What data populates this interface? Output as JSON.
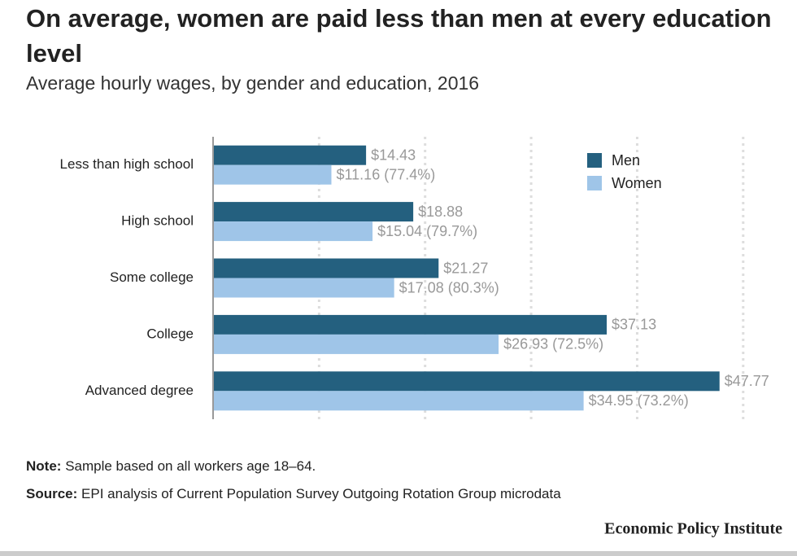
{
  "chart_data": {
    "type": "hbar",
    "title": "On average, women are paid less than men at every education level",
    "subtitle": "Average hourly wages, by gender and education, 2016",
    "categories": [
      "Less than high school",
      "High school",
      "Some college",
      "College",
      "Advanced degree"
    ],
    "series": [
      {
        "name": "Men",
        "color": "#24607f",
        "values": [
          14.43,
          18.88,
          21.27,
          37.13,
          47.77
        ],
        "value_labels": [
          "$14.43",
          "$18.88",
          "$21.27",
          "$37.13",
          "$47.77"
        ]
      },
      {
        "name": "Women",
        "color": "#9fc5e8",
        "values": [
          11.16,
          15.04,
          17.08,
          26.93,
          34.95
        ],
        "value_labels": [
          "$11.16 (77.4%)",
          "$15.04 (79.7%)",
          "$17.08 (80.3%)",
          "$26.93 (72.5%)",
          "$34.95 (73.2%)"
        ]
      }
    ],
    "xlim": [
      0,
      55
    ],
    "xticks": [
      10,
      20,
      30,
      40,
      50
    ],
    "grid": true,
    "note": {
      "label": "Note:",
      "text": "Sample based on all workers age 18–64."
    },
    "source": {
      "label": "Source:",
      "text": "EPI analysis of Current Population Survey Outgoing Rotation Group microdata"
    },
    "branding": "Economic Policy Institute"
  }
}
